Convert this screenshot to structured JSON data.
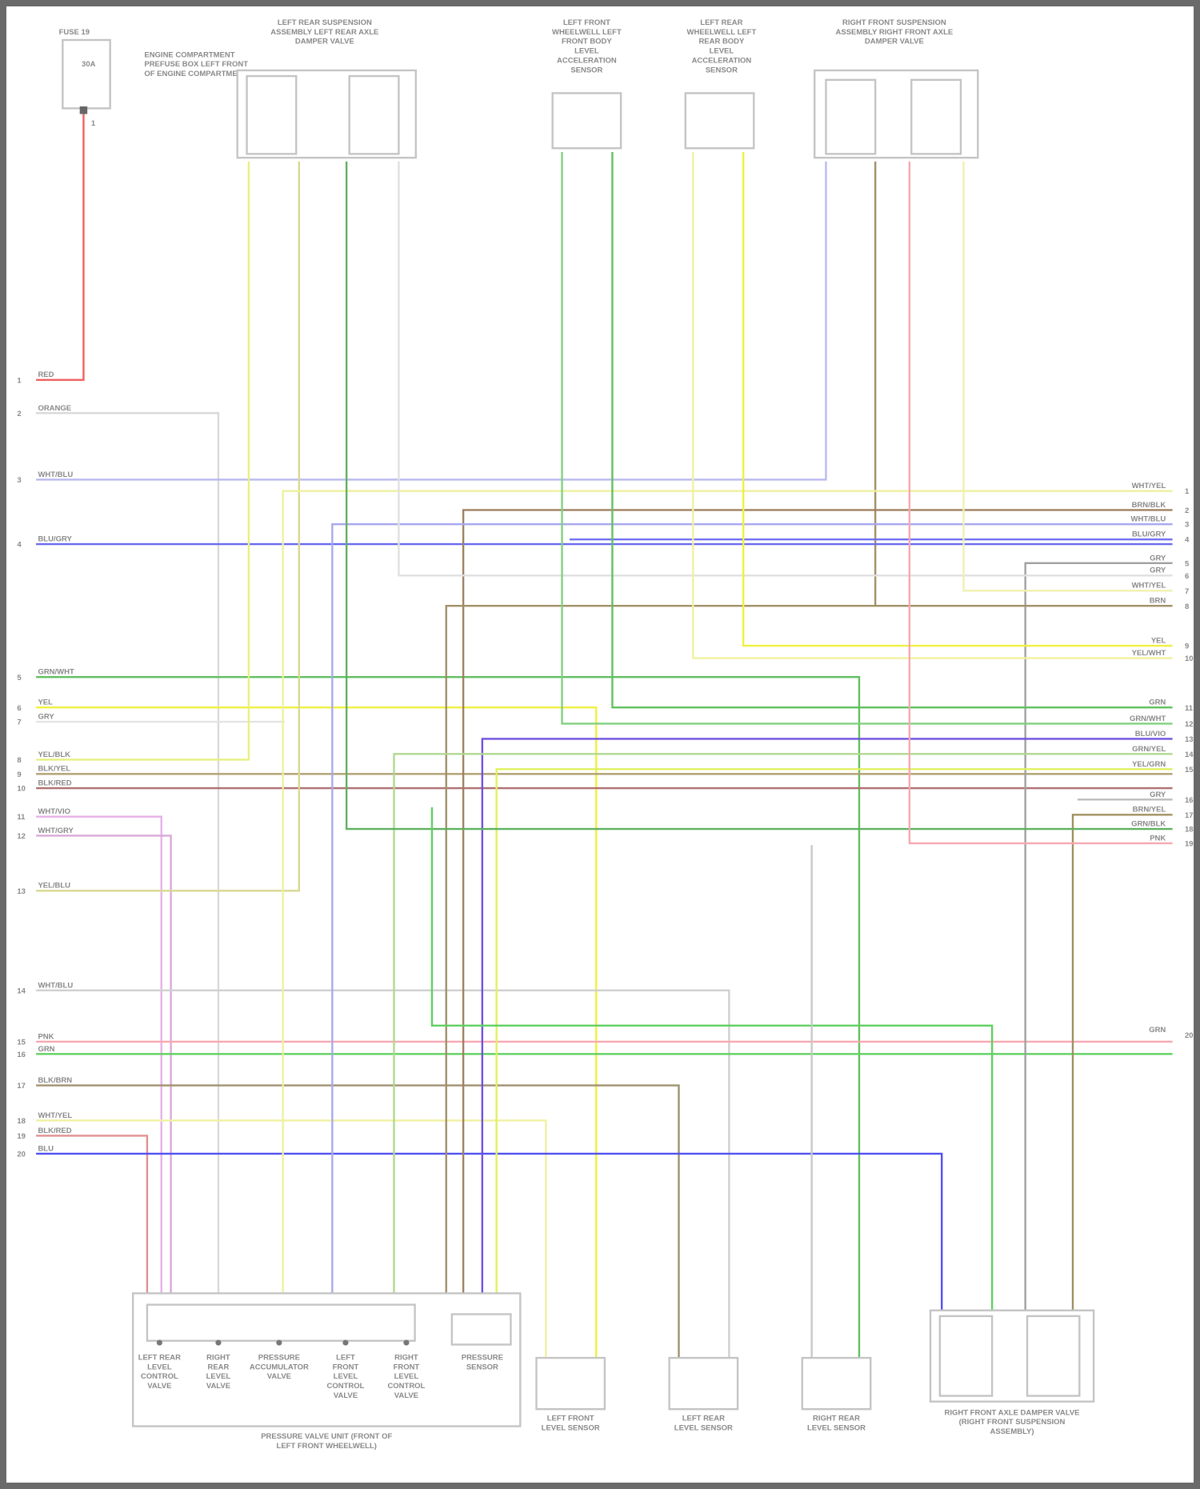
{
  "diagram": {
    "components": {
      "fuse": {
        "title": "FUSE 19",
        "rating": "30A",
        "note": "ENGINE COMPARTMENT PREFUSE BOX LEFT FRONT OF ENGINE COMPARTMENT",
        "pin": "1"
      },
      "left_rear_valve": {
        "title": "LEFT REAR SUSPENSION ASSEMBLY LEFT REAR AXLE DAMPER VALVE"
      },
      "left_front_sensor_top": {
        "title": "LEFT FRONT WHEELWELL LEFT FRONT BODY LEVEL ACCELERATION SENSOR"
      },
      "left_rear_sensor_top": {
        "title": "LEFT REAR WHEELWELL LEFT REAR BODY LEVEL ACCELERATION SENSOR"
      },
      "right_front_valve": {
        "title": "RIGHT FRONT SUSPENSION ASSEMBLY RIGHT FRONT AXLE DAMPER VALVE"
      },
      "valve_unit": {
        "title": "PRESSURE VALVE UNIT (FRONT OF LEFT FRONT WHEELWELL)",
        "valves": [
          "LEFT REAR LEVEL CONTROL VALVE",
          "RIGHT REAR LEVEL VALVE",
          "PRESSURE ACCUMULATOR VALVE",
          "LEFT FRONT LEVEL CONTROL VALVE",
          "RIGHT FRONT LEVEL CONTROL VALVE"
        ],
        "sensor": "PRESSURE SENSOR"
      },
      "left_front_level": {
        "title": "LEFT FRONT LEVEL SENSOR"
      },
      "left_rear_level": {
        "title": "LEFT REAR LEVEL SENSOR"
      },
      "right_rear_level": {
        "title": "RIGHT REAR LEVEL SENSOR"
      },
      "right_damper": {
        "title": "RIGHT FRONT AXLE DAMPER VALVE (RIGHT FRONT SUSPENSION ASSEMBLY)"
      }
    },
    "wires_left": [
      {
        "pin": "1",
        "label": "RED",
        "color": "#f06060"
      },
      {
        "pin": "2",
        "label": "ORANGE",
        "color": "#d8d8d8"
      },
      {
        "pin": "3",
        "label": "WHT/BLU",
        "color": "#b8b8f0"
      },
      {
        "pin": "4",
        "label": "BLU/GRY",
        "color": "#6a6af0"
      },
      {
        "pin": "5",
        "label": "GRN/WHT",
        "color": "#60c060"
      },
      {
        "pin": "6",
        "label": "YEL",
        "color": "#f0f040"
      },
      {
        "pin": "7",
        "label": "GRY",
        "color": "#e4e4e4"
      },
      {
        "pin": "8",
        "label": "YEL/BLK",
        "color": "#e8f080"
      },
      {
        "pin": "9",
        "label": "BLK/YEL",
        "color": "#b0a070"
      },
      {
        "pin": "10",
        "label": "BLK/RED",
        "color": "#b07070"
      },
      {
        "pin": "11",
        "label": "WHT/VIO",
        "color": "#e8b0e8"
      },
      {
        "pin": "12",
        "label": "WHT/GRY",
        "color": "#d8a8d8"
      },
      {
        "pin": "13",
        "label": "YEL/BLU",
        "color": "#d8d890"
      },
      {
        "pin": "14",
        "label": "WHT/BLU",
        "color": "#cfcfcf"
      },
      {
        "pin": "15",
        "label": "PNK",
        "color": "#f7a8b0"
      },
      {
        "pin": "16",
        "label": "GRN",
        "color": "#60d060"
      },
      {
        "pin": "17",
        "label": "BLK/BRN",
        "color": "#a09070"
      },
      {
        "pin": "18",
        "label": "WHT/YEL",
        "color": "#f0f0a0"
      },
      {
        "pin": "19",
        "label": "BLK/RED",
        "color": "#e09090"
      },
      {
        "pin": "20",
        "label": "BLU",
        "color": "#5050f0"
      }
    ],
    "wires_right": [
      {
        "pin": "1",
        "label": "WHT/YEL",
        "color": "#eef0a0"
      },
      {
        "pin": "2",
        "label": "BRN/BLK",
        "color": "#a08060"
      },
      {
        "pin": "3",
        "label": "WHT/BLU",
        "color": "#a8a8f0"
      },
      {
        "pin": "4",
        "label": "BLU/GRY",
        "color": "#7070f0"
      },
      {
        "pin": "5",
        "label": "GRY",
        "color": "#a0a0a0"
      },
      {
        "pin": "6",
        "label": "GRY",
        "color": "#e0e0e0"
      },
      {
        "pin": "7",
        "label": "WHT/YEL",
        "color": "#f0f0b0"
      },
      {
        "pin": "8",
        "label": "BRN",
        "color": "#a09068"
      },
      {
        "pin": "9",
        "label": "YEL",
        "color": "#f0f040"
      },
      {
        "pin": "10",
        "label": "YEL/WHT",
        "color": "#f0f0a0"
      },
      {
        "pin": "11",
        "label": "GRN",
        "color": "#60c060"
      },
      {
        "pin": "12",
        "label": "GRN/WHT",
        "color": "#80d080"
      },
      {
        "pin": "13",
        "label": "BLU/VIO",
        "color": "#7050e0"
      },
      {
        "pin": "14",
        "label": "GRN/YEL",
        "color": "#b0d890"
      },
      {
        "pin": "15",
        "label": "YEL/GRN",
        "color": "#e0f060"
      },
      {
        "pin": "16",
        "label": "GRY",
        "color": "#bcbcbc"
      },
      {
        "pin": "17",
        "label": "BRN/YEL",
        "color": "#a09060"
      },
      {
        "pin": "18",
        "label": "GRN/BLK",
        "color": "#60b060"
      },
      {
        "pin": "19",
        "label": "PNK",
        "color": "#f7a8b0"
      },
      {
        "pin": "20",
        "label": "GRN",
        "color": "#60d060"
      }
    ]
  }
}
